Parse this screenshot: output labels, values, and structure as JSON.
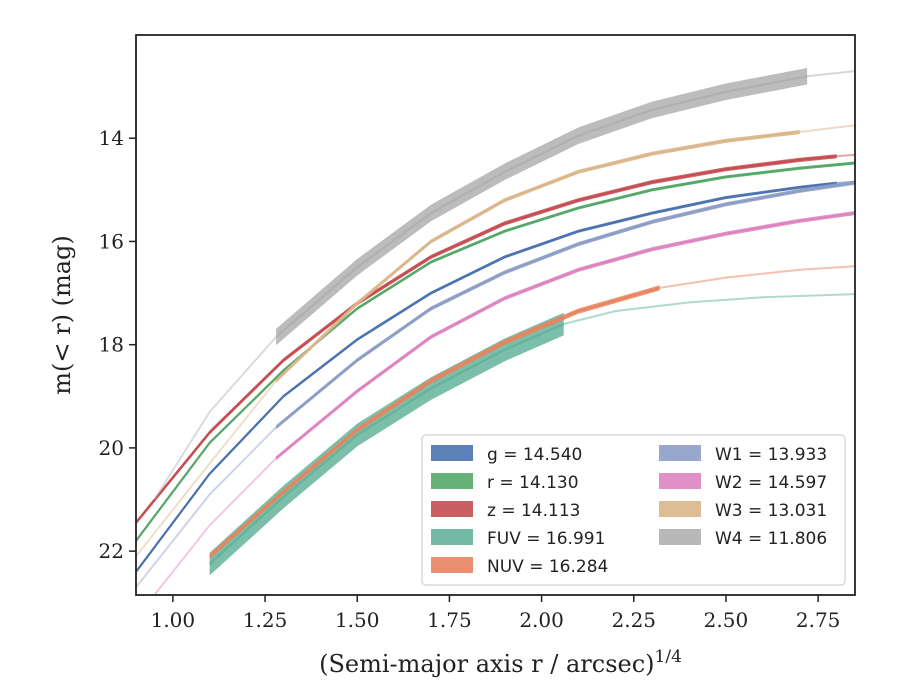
{
  "chart_data": {
    "type": "line",
    "xlabel": "(Semi-major axis r / arcsec)",
    "xlabel_sup": "1/4",
    "ylabel": "m(< r) (mag)",
    "xlim": [
      0.9,
      2.85
    ],
    "ylim": [
      22.85,
      12.0
    ],
    "y_inverted": true,
    "xticks": [
      "1.00",
      "1.25",
      "1.50",
      "1.75",
      "2.00",
      "2.25",
      "2.50",
      "2.75"
    ],
    "xtick_values": [
      1.0,
      1.25,
      1.5,
      1.75,
      2.0,
      2.25,
      2.5,
      2.75
    ],
    "yticks": [
      "14",
      "16",
      "18",
      "20",
      "22"
    ],
    "ytick_values": [
      14,
      16,
      18,
      20,
      22
    ],
    "grid": false,
    "legend_position": "lower-right",
    "series": [
      {
        "key": "g",
        "label": "g = 14.540",
        "color": "#4c72b0",
        "band_halfwidth": 0.03,
        "measured": {
          "x": [
            0.9,
            1.1,
            1.3,
            1.5,
            1.7,
            1.9,
            2.1,
            2.3,
            2.5,
            2.7,
            2.8
          ],
          "y": [
            22.4,
            20.5,
            19.0,
            17.9,
            17.0,
            16.3,
            15.8,
            15.45,
            15.15,
            14.95,
            14.87
          ]
        },
        "extrap": {
          "x": [
            2.8,
            2.85
          ],
          "y": [
            14.87,
            14.84
          ]
        }
      },
      {
        "key": "r",
        "label": "r = 14.130",
        "color": "#55a868",
        "band_halfwidth": 0.03,
        "measured": {
          "x": [
            0.9,
            1.1,
            1.3,
            1.5,
            1.7,
            1.9,
            2.1,
            2.3,
            2.5,
            2.7,
            2.85
          ],
          "y": [
            21.8,
            19.9,
            18.5,
            17.3,
            16.4,
            15.8,
            15.35,
            15.0,
            14.75,
            14.58,
            14.48
          ]
        },
        "extrap": {
          "x": [],
          "y": []
        }
      },
      {
        "key": "z",
        "label": "z = 14.113",
        "color": "#c44e52",
        "band_halfwidth": 0.04,
        "measured": {
          "x": [
            0.9,
            1.1,
            1.3,
            1.5,
            1.7,
            1.9,
            2.1,
            2.3,
            2.5,
            2.7,
            2.8
          ],
          "y": [
            21.45,
            19.7,
            18.3,
            17.2,
            16.3,
            15.65,
            15.2,
            14.85,
            14.6,
            14.42,
            14.35
          ]
        },
        "extrap": {
          "x": [
            2.8,
            2.85
          ],
          "y": [
            14.35,
            14.32
          ]
        }
      },
      {
        "key": "FUV",
        "label": "FUV = 16.991",
        "color": "#64b39a",
        "band_halfwidth": 0.22,
        "measured": {
          "x": [
            1.1,
            1.3,
            1.5,
            1.7,
            1.9,
            2.06
          ],
          "y": [
            22.25,
            20.95,
            19.75,
            18.85,
            18.1,
            17.6
          ]
        },
        "extrap": {
          "x": [
            2.06,
            2.2,
            2.4,
            2.6,
            2.85
          ],
          "y": [
            17.6,
            17.35,
            17.18,
            17.08,
            17.02
          ]
        }
      },
      {
        "key": "NUV",
        "label": "NUV = 16.284",
        "color": "#e8845f",
        "band_halfwidth": 0.05,
        "measured": {
          "x": [
            1.1,
            1.3,
            1.5,
            1.7,
            1.9,
            2.1,
            2.32
          ],
          "y": [
            22.1,
            20.85,
            19.65,
            18.7,
            17.95,
            17.35,
            16.9
          ]
        },
        "extrap": {
          "x": [
            2.32,
            2.5,
            2.7,
            2.85
          ],
          "y": [
            16.9,
            16.7,
            16.55,
            16.48
          ]
        }
      },
      {
        "key": "W1",
        "label": "W1 = 13.933",
        "color": "#8c9ec6",
        "band_halfwidth": 0.04,
        "measured": {
          "x": [
            1.28,
            1.5,
            1.7,
            1.9,
            2.1,
            2.3,
            2.5,
            2.7,
            2.85
          ],
          "y": [
            19.6,
            18.3,
            17.3,
            16.6,
            16.05,
            15.62,
            15.28,
            15.02,
            14.86
          ]
        },
        "extrap": {
          "x": [],
          "y": []
        },
        "faint": {
          "x": [
            0.9,
            1.1,
            1.28
          ],
          "y": [
            22.7,
            20.9,
            19.6
          ]
        }
      },
      {
        "key": "W2",
        "label": "W2 = 14.597",
        "color": "#dd84c0",
        "band_halfwidth": 0.04,
        "measured": {
          "x": [
            1.28,
            1.5,
            1.7,
            1.9,
            2.1,
            2.3,
            2.5,
            2.7,
            2.85
          ],
          "y": [
            20.2,
            18.9,
            17.85,
            17.1,
            16.55,
            16.15,
            15.85,
            15.6,
            15.45
          ]
        },
        "extrap": {
          "x": [],
          "y": []
        },
        "faint": {
          "x": [
            0.95,
            1.1,
            1.28
          ],
          "y": [
            22.85,
            21.5,
            20.2
          ]
        }
      },
      {
        "key": "W3",
        "label": "W3 = 13.031",
        "color": "#dab68a",
        "band_halfwidth": 0.04,
        "measured": {
          "x": [
            1.28,
            1.5,
            1.7,
            1.9,
            2.1,
            2.3,
            2.5,
            2.7
          ],
          "y": [
            18.7,
            17.2,
            16.0,
            15.2,
            14.65,
            14.3,
            14.05,
            13.88
          ]
        },
        "extrap": {
          "x": [
            2.7,
            2.85
          ],
          "y": [
            13.88,
            13.75
          ]
        },
        "faint": {
          "x": [
            0.9,
            1.1,
            1.28
          ],
          "y": [
            22.1,
            20.3,
            18.7
          ]
        }
      },
      {
        "key": "W4",
        "label": "W4 = 11.806",
        "color": "#b0b0b0",
        "band_halfwidth": 0.16,
        "measured": {
          "x": [
            1.28,
            1.5,
            1.7,
            1.9,
            2.1,
            2.3,
            2.5,
            2.72
          ],
          "y": [
            17.85,
            16.5,
            15.45,
            14.65,
            13.95,
            13.45,
            13.1,
            12.8
          ]
        },
        "extrap": {
          "x": [
            2.72,
            2.85
          ],
          "y": [
            12.8,
            12.7
          ]
        },
        "faint": {
          "x": [
            0.95,
            1.1,
            1.28
          ],
          "y": [
            21.0,
            19.3,
            17.85
          ]
        }
      }
    ],
    "legend_columns": [
      [
        "g",
        "r",
        "z",
        "FUV",
        "NUV"
      ],
      [
        "W1",
        "W2",
        "W3",
        "W4"
      ]
    ]
  }
}
